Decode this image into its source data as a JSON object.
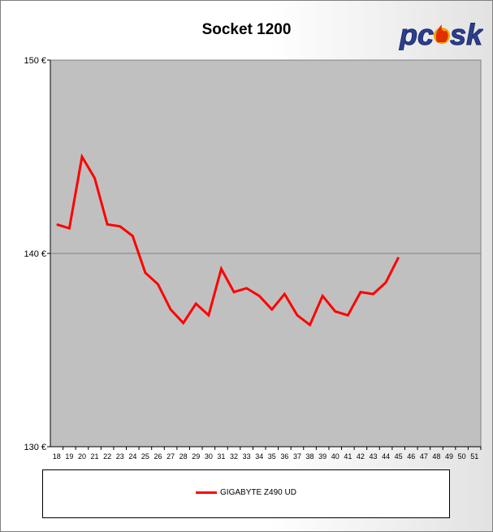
{
  "chart_data": {
    "type": "line",
    "title": "Socket 1200",
    "xlabel": "",
    "ylabel": "",
    "x": [
      18,
      19,
      20,
      21,
      22,
      23,
      24,
      25,
      26,
      27,
      28,
      29,
      30,
      31,
      32,
      33,
      34,
      35,
      36,
      37,
      38,
      39,
      40,
      41,
      42,
      43,
      44,
      45,
      46,
      47,
      48,
      49,
      50,
      51
    ],
    "ylim": [
      130,
      150
    ],
    "yticks": [
      130,
      140,
      150
    ],
    "ytick_labels": [
      "130 €",
      "140 €",
      "150 €"
    ],
    "grid": "horizontal",
    "legend_position": "bottom",
    "series": [
      {
        "name": "GIGABYTE Z490 UD",
        "color": "#ff0000",
        "values": [
          141.5,
          141.3,
          145.0,
          143.9,
          141.5,
          141.4,
          140.9,
          139.0,
          138.4,
          137.1,
          136.4,
          137.4,
          136.8,
          139.2,
          138.0,
          138.2,
          137.8,
          137.1,
          137.9,
          136.8,
          136.3,
          137.8,
          137.0,
          136.8,
          138.0,
          137.9,
          138.5,
          139.8,
          null,
          null,
          null,
          null,
          null,
          null
        ]
      }
    ],
    "plot_background": "#c0c0c0"
  },
  "logo": {
    "text": "pcosk"
  }
}
